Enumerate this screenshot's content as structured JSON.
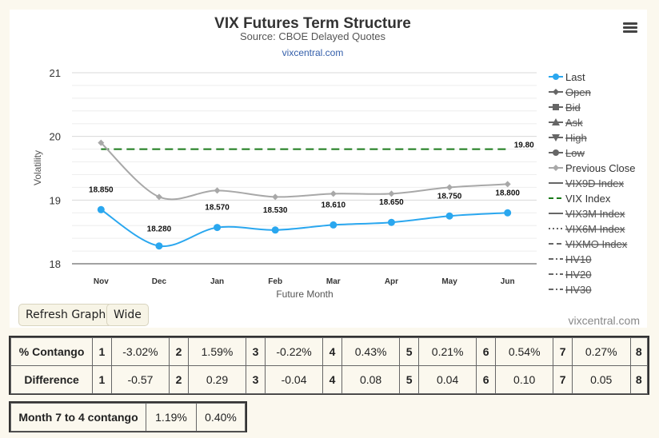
{
  "chart": {
    "title": "VIX Futures Term Structure",
    "subtitle": "Source: CBOE Delayed Quotes",
    "link": "vixcentral.com",
    "credit": "vixcentral.com"
  },
  "chart_data": {
    "type": "line",
    "categories": [
      "Nov",
      "Dec",
      "Jan",
      "Feb",
      "Mar",
      "Apr",
      "May",
      "Jun"
    ],
    "xlabel": "Future Month",
    "ylabel": "Volatility",
    "ylim": [
      18,
      21
    ],
    "yticks": [
      "18",
      "19",
      "20",
      "21"
    ],
    "grid": true,
    "legend_position": "right",
    "series": [
      {
        "name": "Last",
        "values": [
          18.85,
          18.28,
          18.57,
          18.53,
          18.61,
          18.65,
          18.75,
          18.8
        ],
        "labels": [
          "18.850",
          "18.280",
          "18.570",
          "18.530",
          "18.610",
          "18.650",
          "18.750",
          "18.800"
        ],
        "color": "#2aa7ef"
      },
      {
        "name": "Previous Close",
        "values": [
          19.9,
          19.05,
          19.15,
          19.05,
          19.1,
          19.1,
          19.2,
          19.25
        ],
        "color": "#a8a8a8"
      },
      {
        "name": "VIX Index",
        "value": 19.8,
        "label": "19.80",
        "color": "#1a7a1a",
        "style": "dashed"
      }
    ]
  },
  "legend": [
    {
      "name": "Last",
      "marker": "circle",
      "active": true,
      "color": "#2aa7ef"
    },
    {
      "name": "Open",
      "marker": "diamond",
      "active": false,
      "color": "#666"
    },
    {
      "name": "Bid",
      "marker": "square",
      "active": false,
      "color": "#666"
    },
    {
      "name": "Ask",
      "marker": "triangle",
      "active": false,
      "color": "#666"
    },
    {
      "name": "High",
      "marker": "triangle-down",
      "active": false,
      "color": "#666"
    },
    {
      "name": "Low",
      "marker": "circle",
      "active": false,
      "color": "#666"
    },
    {
      "name": "Previous Close",
      "marker": "diamond",
      "active": true,
      "color": "#a8a8a8"
    },
    {
      "name": "VIX9D Index",
      "marker": "line",
      "active": false,
      "color": "#666"
    },
    {
      "name": "VIX Index",
      "marker": "dash",
      "active": true,
      "color": "#1a7a1a"
    },
    {
      "name": "VIX3M Index",
      "marker": "line",
      "active": false,
      "color": "#666"
    },
    {
      "name": "VIX6M Index",
      "marker": "dot",
      "active": false,
      "color": "#666"
    },
    {
      "name": "VIXMO Index",
      "marker": "dash",
      "active": false,
      "color": "#666"
    },
    {
      "name": "HV10",
      "marker": "dashdot",
      "active": false,
      "color": "#666"
    },
    {
      "name": "HV20",
      "marker": "dashdot",
      "active": false,
      "color": "#666"
    },
    {
      "name": "HV30",
      "marker": "dashdot",
      "active": false,
      "color": "#666"
    }
  ],
  "buttons": {
    "refresh": "Refresh Graph",
    "wide": "Wide"
  },
  "contango_table": {
    "rows": [
      {
        "label": "% Contango",
        "cells": [
          [
            "1",
            "-3.02%"
          ],
          [
            "2",
            "1.59%"
          ],
          [
            "3",
            "-0.22%"
          ],
          [
            "4",
            "0.43%"
          ],
          [
            "5",
            "0.21%"
          ],
          [
            "6",
            "0.54%"
          ],
          [
            "7",
            "0.27%"
          ],
          [
            "8",
            ""
          ]
        ]
      },
      {
        "label": "Difference",
        "cells": [
          [
            "1",
            "-0.57"
          ],
          [
            "2",
            "0.29"
          ],
          [
            "3",
            "-0.04"
          ],
          [
            "4",
            "0.08"
          ],
          [
            "5",
            "0.04"
          ],
          [
            "6",
            "0.10"
          ],
          [
            "7",
            "0.05"
          ],
          [
            "8",
            ""
          ]
        ]
      }
    ]
  },
  "month74": {
    "label": "Month 7 to 4 contango",
    "value1": "1.19%",
    "value2": "0.40%"
  }
}
